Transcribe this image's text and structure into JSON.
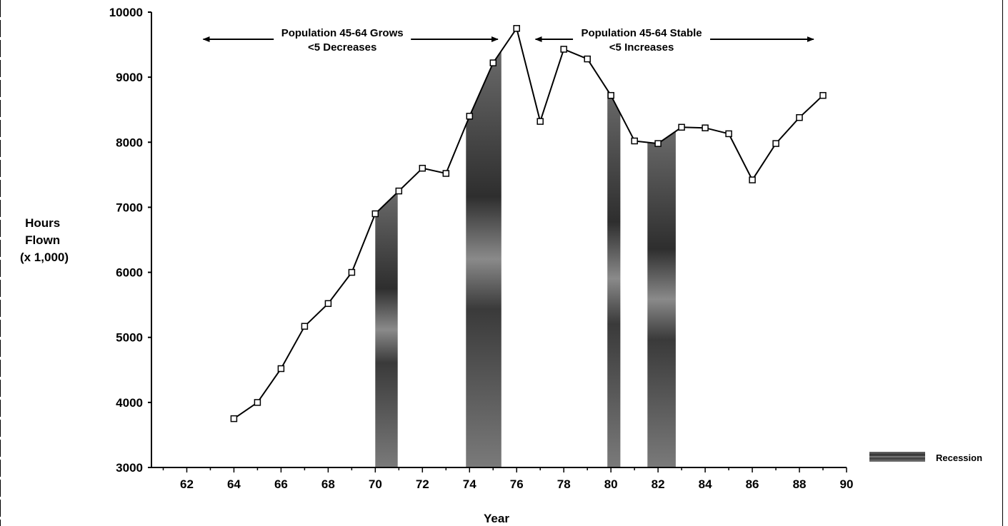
{
  "chart_data": {
    "type": "line",
    "title": "",
    "xlabel": "Year",
    "ylabel_lines": [
      "Hours",
      "Flown",
      "(x 1,000)"
    ],
    "xlim": [
      60.5,
      90
    ],
    "ylim": [
      3000,
      10000
    ],
    "x_ticks": [
      62,
      64,
      66,
      68,
      70,
      72,
      74,
      76,
      78,
      80,
      82,
      84,
      86,
      88,
      90
    ],
    "y_ticks": [
      3000,
      4000,
      5000,
      6000,
      7000,
      8000,
      9000,
      10000
    ],
    "grid": false,
    "series": [
      {
        "x": [
          64,
          65,
          66,
          67,
          68,
          69,
          70,
          71,
          72,
          73,
          74,
          75,
          76,
          77,
          78,
          79,
          80,
          81,
          82,
          83,
          84,
          85,
          86,
          87,
          88,
          89
        ],
        "y": [
          3750,
          4000,
          4520,
          5170,
          5520,
          6000,
          6900,
          7250,
          7600,
          7520,
          8400,
          9220,
          9750,
          8320,
          9430,
          9280,
          8720,
          8020,
          7980,
          8230,
          8220,
          8130,
          7420,
          7980,
          8380,
          8720
        ]
      }
    ],
    "recessions": [
      {
        "start": 70.0,
        "end": 70.95
      },
      {
        "start": 73.85,
        "end": 75.35
      },
      {
        "start": 79.85,
        "end": 80.4
      },
      {
        "start": 81.55,
        "end": 82.75
      }
    ],
    "legend": {
      "label": "Recession",
      "placement": "bottom-right"
    },
    "annotations": [
      {
        "lines": [
          "Population 45-64 Grows",
          "<5 Decreases"
        ],
        "arrow_from": 62.7,
        "arrow_to": 75.2,
        "text_x": 68.6
      },
      {
        "lines": [
          "Population 45-64 Stable",
          "<5 Increases"
        ],
        "arrow_from": 76.8,
        "arrow_to": 88.6,
        "text_x": 81.3
      }
    ]
  }
}
